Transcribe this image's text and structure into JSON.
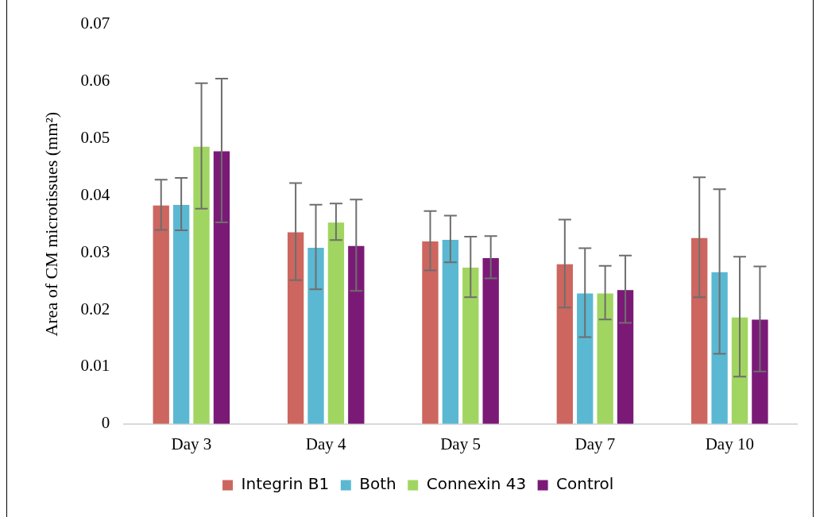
{
  "chart_data": {
    "type": "bar",
    "ylabel": "Area of CM microtissues (mm²)",
    "categories": [
      "Day 3",
      "Day 4",
      "Day 5",
      "Day 7",
      "Day 10"
    ],
    "series": [
      {
        "name": "Integrin B1",
        "color": "#cd665f",
        "values": [
          0.0384,
          0.0337,
          0.0321,
          0.0281,
          0.0327
        ],
        "errors": [
          0.0044,
          0.0085,
          0.0052,
          0.0077,
          0.0105
        ]
      },
      {
        "name": "Both",
        "color": "#5bb8d2",
        "values": [
          0.0385,
          0.031,
          0.0324,
          0.023,
          0.0267
        ],
        "errors": [
          0.0046,
          0.0074,
          0.0041,
          0.0078,
          0.0144
        ]
      },
      {
        "name": "Connexin 43",
        "color": "#a1d561",
        "values": [
          0.0487,
          0.0354,
          0.0275,
          0.023,
          0.0188
        ],
        "errors": [
          0.011,
          0.0032,
          0.0053,
          0.0047,
          0.0105
        ]
      },
      {
        "name": "Control",
        "color": "#7b1a76",
        "values": [
          0.0479,
          0.0313,
          0.0292,
          0.0236,
          0.0184
        ],
        "errors": [
          0.0126,
          0.008,
          0.0037,
          0.0059,
          0.0092
        ]
      }
    ],
    "ylim": [
      0,
      0.07
    ],
    "yticks": [
      0,
      0.01,
      0.02,
      0.03,
      0.04,
      0.05,
      0.06,
      0.07
    ],
    "grid": false,
    "legend": "bottom"
  }
}
